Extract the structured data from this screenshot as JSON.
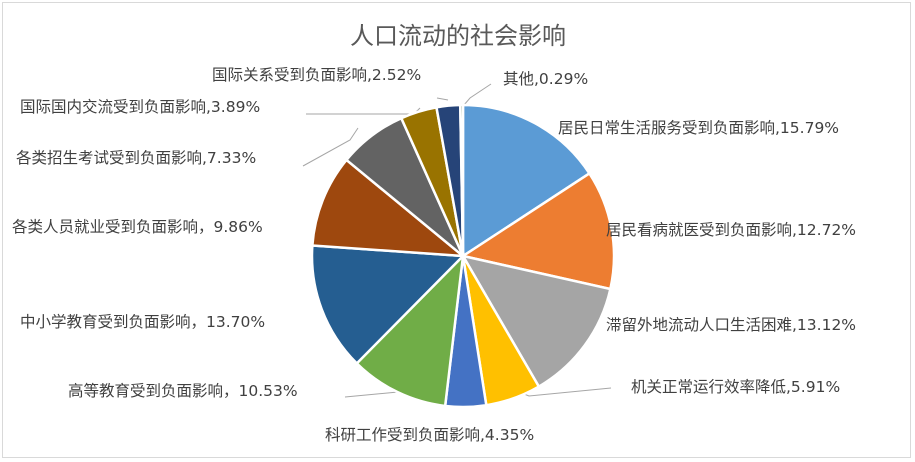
{
  "chart_data": {
    "type": "pie",
    "title": "人口流动的社会影响",
    "categories": [
      "居民日常生活服务受到负面影响",
      "居民看病就医受到负面影响",
      "滞留外地流动人口生活困难",
      "机关正常运行效率降低",
      "科研工作受到负面影响",
      "高等教育受到负面影响",
      "中小学教育受到负面影响",
      "各类人员就业受到负面影响",
      "各类招生考试受到负面影响",
      "国际国内交流受到负面影响",
      "国际关系受到负面影响",
      "其他"
    ],
    "values": [
      15.79,
      12.72,
      13.12,
      5.91,
      4.35,
      10.53,
      13.7,
      9.86,
      7.33,
      3.89,
      2.52,
      0.29
    ],
    "labels": [
      "居民日常生活服务受到负面影响,15.79%",
      "居民看病就医受到负面影响,12.72%",
      "滞留外地流动人口生活困难,13.12%",
      "机关正常运行效率降低,5.91%",
      "科研工作受到负面影响,4.35%",
      "高等教育受到负面影响，10.53%",
      "中小学教育受到负面影响，13.70%",
      "各类人员就业受到负面影响，9.86%",
      "各类招生考试受到负面影响,7.33%",
      "国际国内交流受到负面影响,3.89%",
      "国际关系受到负面影响,2.52%",
      "其他,0.29%"
    ],
    "colors": [
      "#5b9bd5",
      "#ed7d31",
      "#a5a5a5",
      "#ffc000",
      "#4472c4",
      "#70ad47",
      "#255e91",
      "#9e480e",
      "#636363",
      "#997300",
      "#264478",
      "#43682b"
    ],
    "legend": "none",
    "start_angle": "12 o'clock, clockwise"
  }
}
